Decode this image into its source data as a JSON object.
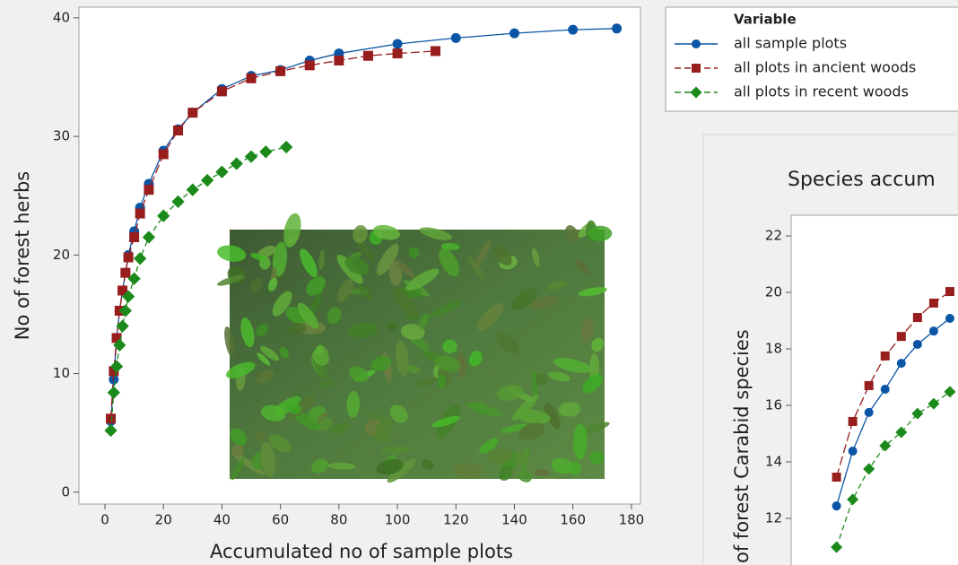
{
  "chart_data": [
    {
      "type": "line",
      "xlabel": "Accumulated no of sample plots",
      "ylabel": "No of forest herbs",
      "xlim": [
        -8.9,
        183.1
      ],
      "ylim": [
        -1,
        40.9
      ],
      "xticks": [
        0,
        20,
        40,
        60,
        80,
        100,
        120,
        140,
        160,
        180
      ],
      "yticks": [
        0,
        10,
        20,
        30,
        40
      ],
      "legend_title": "Variable",
      "series": [
        {
          "name": "all sample plots",
          "color": "#0a55a5",
          "marker": "circle",
          "line_style": "solid",
          "x": [
            2,
            3,
            4,
            5,
            6,
            7,
            8,
            10,
            12,
            15,
            20,
            25,
            30,
            40,
            50,
            60,
            70,
            80,
            100,
            120,
            140,
            160,
            175
          ],
          "values": [
            6,
            9.5,
            13,
            15.3,
            17,
            18.5,
            20,
            22,
            24,
            26,
            28.8,
            30.6,
            32,
            34,
            35.1,
            35.6,
            36.4,
            37,
            37.8,
            38.3,
            38.7,
            39,
            39.1
          ]
        },
        {
          "name": "all plots in ancient woods",
          "color": "#981d1d",
          "marker": "square",
          "line_style": "dashed",
          "x": [
            2,
            3,
            4,
            5,
            6,
            7,
            8,
            10,
            12,
            15,
            20,
            25,
            30,
            40,
            50,
            60,
            70,
            80,
            90,
            100,
            113
          ],
          "values": [
            6.2,
            10.2,
            13,
            15.3,
            17,
            18.5,
            19.8,
            21.5,
            23.5,
            25.5,
            28.5,
            30.5,
            32,
            33.8,
            34.9,
            35.5,
            36,
            36.4,
            36.8,
            37,
            37.2
          ]
        },
        {
          "name": "all plots in recent woods",
          "color": "#1b8a1b",
          "marker": "diamond",
          "line_style": "dashed",
          "x": [
            2,
            3,
            4,
            5,
            6,
            7,
            8,
            10,
            12,
            15,
            20,
            25,
            30,
            35,
            40,
            45,
            50,
            55,
            62
          ],
          "values": [
            5.2,
            8.4,
            10.6,
            12.4,
            14,
            15.3,
            16.5,
            18,
            19.7,
            21.5,
            23.3,
            24.5,
            25.5,
            26.3,
            27,
            27.7,
            28.3,
            28.7,
            29.1
          ]
        }
      ]
    },
    {
      "type": "line",
      "title": "Species accum",
      "ylabel": "of forest Carabid species",
      "xlim": [
        -0.8,
        9.5
      ],
      "ylim": [
        10.35,
        22.73
      ],
      "yticks": [
        12,
        14,
        16,
        18,
        20,
        22
      ],
      "series": [
        {
          "color": "#0a55a5",
          "marker": "circle",
          "line_style": "solid",
          "x": [
            2,
            3,
            4,
            5,
            6,
            7,
            8,
            9
          ],
          "values": [
            12.44,
            14.38,
            15.75,
            16.57,
            17.49,
            18.16,
            18.63,
            19.08
          ]
        },
        {
          "color": "#981d1d",
          "marker": "square",
          "line_style": "dashed",
          "x": [
            2,
            3,
            4,
            5,
            6,
            7,
            8,
            9
          ],
          "values": [
            13.46,
            15.43,
            16.7,
            17.75,
            18.44,
            19.11,
            19.62,
            20.03
          ]
        },
        {
          "color": "#1b8a1b",
          "marker": "diamond",
          "line_style": "dashed",
          "x": [
            2,
            3,
            4,
            5,
            6,
            7,
            8,
            9
          ],
          "values": [
            10.98,
            12.67,
            13.75,
            14.57,
            15.05,
            15.71,
            16.06,
            16.48
          ]
        }
      ]
    }
  ]
}
